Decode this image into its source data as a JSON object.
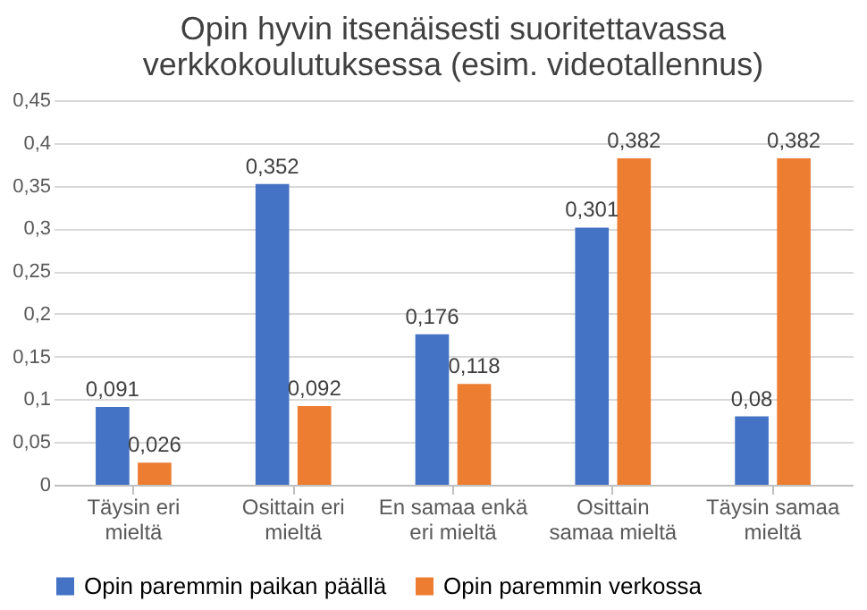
{
  "chart_data": {
    "type": "bar",
    "title": "Opin hyvin itsenäisesti suoritettavassa verkkokoulutuksessa (esim. videotallennus)",
    "categories": [
      "Täysin eri mieltä",
      "Osittain eri mieltä",
      "En samaa enkä eri mieltä",
      "Osittain samaa mieltä",
      "Täysin samaa mieltä"
    ],
    "series": [
      {
        "name": "Opin paremmin paikan päällä",
        "color": "#4472c4",
        "values": [
          0.091,
          0.352,
          0.176,
          0.301,
          0.08
        ],
        "value_labels": [
          "0,091",
          "0,352",
          "0,176",
          "0,301",
          "0,08"
        ]
      },
      {
        "name": "Opin paremmin verkossa",
        "color": "#ed7d31",
        "values": [
          0.026,
          0.092,
          0.118,
          0.382,
          0.382
        ],
        "value_labels": [
          "0,026",
          "0,092",
          "0,118",
          "0,382",
          "0,382"
        ]
      }
    ],
    "ylim": [
      0,
      0.45
    ],
    "yticks": [
      0,
      {
        "value": 0.05,
        "label": "0,05"
      },
      {
        "value": 0.1,
        "label": "0,1"
      },
      {
        "value": 0.15,
        "label": "0,15"
      },
      {
        "value": 0.2,
        "label": "0,2"
      },
      {
        "value": 0.25,
        "label": "0,25"
      },
      {
        "value": 0.3,
        "label": "0,3"
      },
      {
        "value": 0.35,
        "label": "0,35"
      },
      {
        "value": 0.4,
        "label": "0,4"
      },
      {
        "value": 0.45,
        "label": "0,45"
      }
    ],
    "grid": "y",
    "legend": "bottom"
  }
}
